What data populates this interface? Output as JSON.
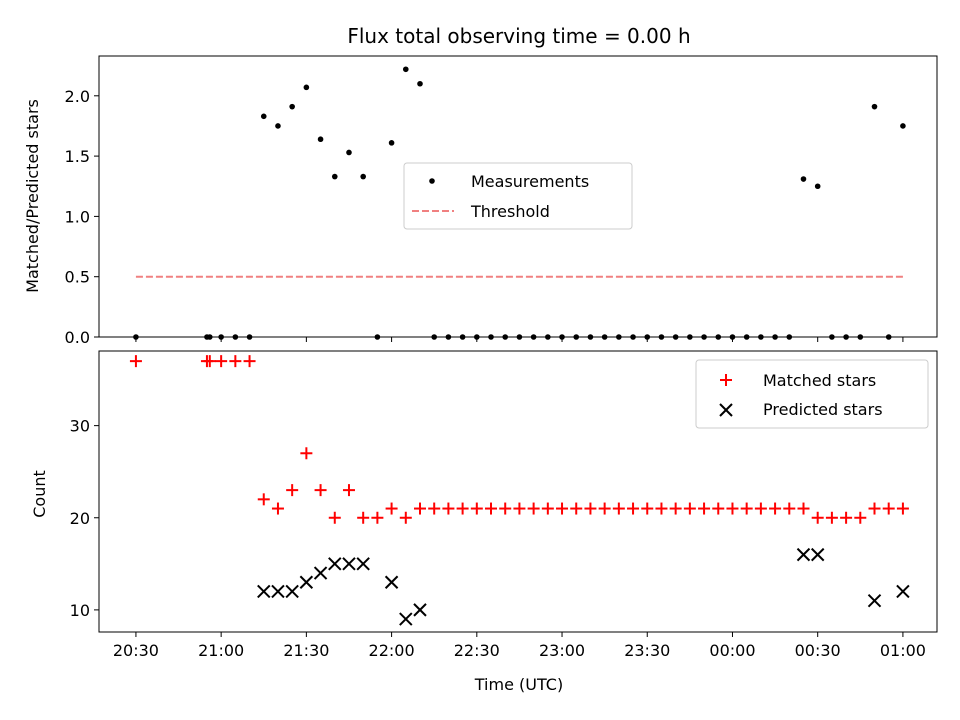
{
  "chart_data": [
    {
      "type": "scatter",
      "title": "Flux total observing time = 0.00 h",
      "xlabel": "",
      "ylabel": "Matched/Predicted stars",
      "ylim": [
        0,
        2.33
      ],
      "yticks": [
        0.0,
        0.5,
        1.0,
        1.5,
        2.0
      ],
      "ytick_labels": [
        "0.0",
        "0.5",
        "1.0",
        "1.5",
        "2.0"
      ],
      "legend_position": "center",
      "series": [
        {
          "name": "Measurements",
          "marker": "dot",
          "color": "#000000",
          "x": [
            "20:30",
            "20:55",
            "20:56",
            "21:00",
            "21:05",
            "21:10",
            "21:15",
            "21:20",
            "21:25",
            "21:30",
            "21:35",
            "21:40",
            "21:45",
            "21:50",
            "21:55",
            "22:00",
            "22:05",
            "22:10",
            "22:15",
            "22:20",
            "22:25",
            "22:30",
            "22:35",
            "22:40",
            "22:45",
            "22:50",
            "22:55",
            "23:00",
            "23:05",
            "23:10",
            "23:15",
            "23:20",
            "23:25",
            "23:30",
            "23:35",
            "23:40",
            "23:45",
            "23:50",
            "23:55",
            "00:00",
            "00:05",
            "00:10",
            "00:15",
            "00:20",
            "00:25",
            "00:30",
            "00:35",
            "00:40",
            "00:45",
            "00:50",
            "00:55",
            "01:00"
          ],
          "y": [
            0,
            0,
            0,
            0,
            0,
            0,
            1.83,
            1.75,
            1.91,
            2.07,
            1.64,
            1.33,
            1.53,
            1.33,
            0,
            1.61,
            2.22,
            2.1,
            0,
            0,
            0,
            0,
            0,
            0,
            0,
            0,
            0,
            0,
            0,
            0,
            0,
            0,
            0,
            0,
            0,
            0,
            0,
            0,
            0,
            0,
            0,
            0,
            0,
            0,
            1.31,
            1.25,
            0,
            0,
            0,
            1.91,
            0,
            1.75
          ]
        },
        {
          "name": "Threshold",
          "marker": "dashed-line",
          "color": "#f08080",
          "x": [
            "20:30",
            "01:00"
          ],
          "y": [
            0.5,
            0.5
          ]
        }
      ]
    },
    {
      "type": "scatter",
      "title": "",
      "xlabel": "Time (UTC)",
      "ylabel": "Count",
      "ylim": [
        7.6,
        38.1
      ],
      "yticks": [
        10,
        20,
        30
      ],
      "ytick_labels": [
        "10",
        "20",
        "30"
      ],
      "xtick_labels": [
        "20:30",
        "21:00",
        "21:30",
        "22:00",
        "22:30",
        "23:00",
        "23:30",
        "00:00",
        "00:30",
        "01:00"
      ],
      "legend_position": "top-right",
      "series": [
        {
          "name": "Matched stars",
          "marker": "plus",
          "color": "#ff0000",
          "x": [
            "20:30",
            "20:55",
            "20:56",
            "21:00",
            "21:05",
            "21:10",
            "21:15",
            "21:20",
            "21:25",
            "21:30",
            "21:35",
            "21:40",
            "21:45",
            "21:50",
            "21:55",
            "22:00",
            "22:05",
            "22:10",
            "22:15",
            "22:20",
            "22:25",
            "22:30",
            "22:35",
            "22:40",
            "22:45",
            "22:50",
            "22:55",
            "23:00",
            "23:05",
            "23:10",
            "23:15",
            "23:20",
            "23:25",
            "23:30",
            "23:35",
            "23:40",
            "23:45",
            "23:50",
            "23:55",
            "00:00",
            "00:05",
            "00:10",
            "00:15",
            "00:20",
            "00:25",
            "00:30",
            "00:35",
            "00:40",
            "00:45",
            "00:50",
            "00:55",
            "01:00"
          ],
          "y": [
            37,
            37,
            37,
            37,
            37,
            37,
            22,
            21,
            23,
            27,
            23,
            20,
            23,
            20,
            20,
            21,
            20,
            21,
            21,
            21,
            21,
            21,
            21,
            21,
            21,
            21,
            21,
            21,
            21,
            21,
            21,
            21,
            21,
            21,
            21,
            21,
            21,
            21,
            21,
            21,
            21,
            21,
            21,
            21,
            21,
            20,
            20,
            20,
            20,
            21,
            21,
            21
          ]
        },
        {
          "name": "Predicted stars",
          "marker": "x",
          "color": "#000000",
          "x": [
            "21:15",
            "21:20",
            "21:25",
            "21:30",
            "21:35",
            "21:40",
            "21:45",
            "21:50",
            "22:00",
            "22:05",
            "22:10",
            "00:25",
            "00:30",
            "00:50",
            "01:00"
          ],
          "y": [
            12,
            12,
            12,
            13,
            14,
            15,
            15,
            15,
            13,
            9,
            10,
            16,
            16,
            11,
            12
          ]
        }
      ]
    }
  ]
}
